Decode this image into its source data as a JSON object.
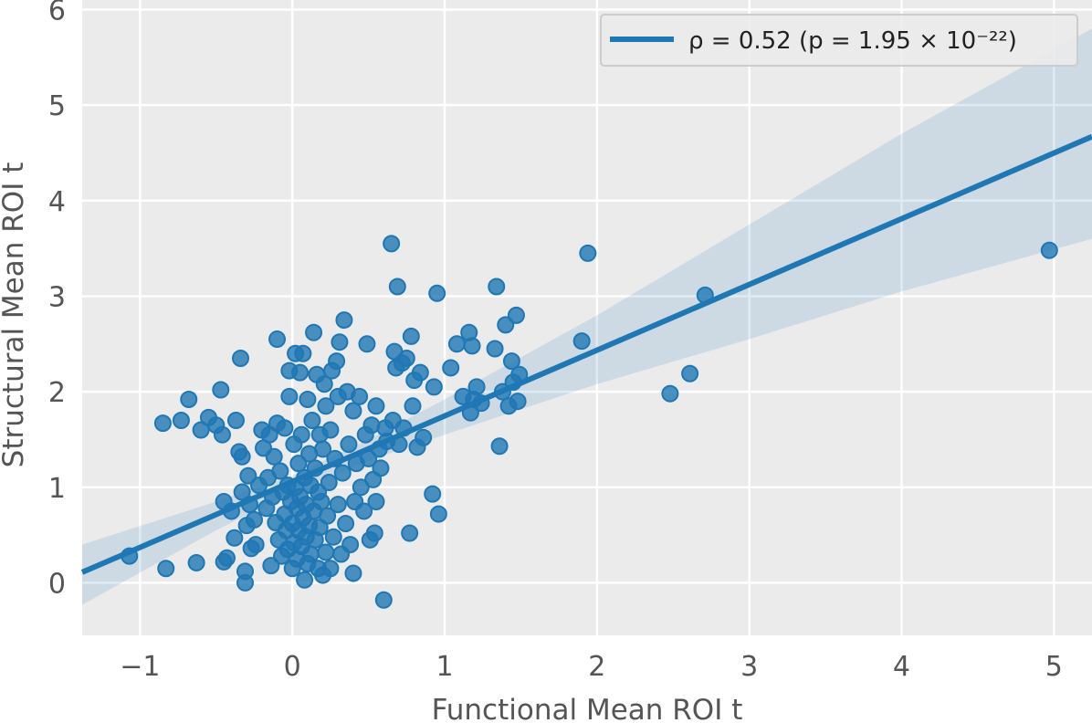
{
  "chart_data": {
    "type": "scatter",
    "xlabel": "Functional Mean ROI t",
    "ylabel": "Structural Mean ROI t",
    "xlim": [
      -1.38,
      5.25
    ],
    "ylim": [
      -0.55,
      6.1
    ],
    "x_ticks": [
      -1,
      0,
      1,
      2,
      3,
      4,
      5
    ],
    "y_ticks": [
      0,
      1,
      2,
      3,
      4,
      5,
      6
    ],
    "x_tick_labels": [
      "−1",
      "0",
      "1",
      "2",
      "3",
      "4",
      "5"
    ],
    "y_tick_labels": [
      "0",
      "1",
      "2",
      "3",
      "4",
      "5",
      "6"
    ],
    "grid": true,
    "background": "#ebebeb",
    "point_color": "#1f77b4",
    "legend": {
      "placement": "top-right",
      "label": "ρ = 0.52 (p = 1.95 × 10⁻²²)"
    },
    "regression": {
      "x_range": [
        -1.38,
        5.25
      ],
      "y_at_xmin": 0.11,
      "y_at_xmax": 4.67
    },
    "confidence_band": [
      {
        "x": -1.38,
        "lo": -0.23,
        "hi": 0.4
      },
      {
        "x": -0.5,
        "lo": 0.55,
        "hi": 0.85
      },
      {
        "x": 0.0,
        "lo": 0.95,
        "hi": 1.12
      },
      {
        "x": 0.5,
        "lo": 1.28,
        "hi": 1.5
      },
      {
        "x": 1.0,
        "lo": 1.55,
        "hi": 1.92
      },
      {
        "x": 2.0,
        "lo": 2.08,
        "hi": 2.8
      },
      {
        "x": 3.0,
        "lo": 2.55,
        "hi": 3.75
      },
      {
        "x": 4.0,
        "lo": 3.05,
        "hi": 4.7
      },
      {
        "x": 5.25,
        "lo": 3.6,
        "hi": 5.8
      }
    ],
    "points": [
      {
        "x": -1.07,
        "y": 0.28
      },
      {
        "x": -0.83,
        "y": 0.15
      },
      {
        "x": -0.85,
        "y": 1.67
      },
      {
        "x": -0.73,
        "y": 1.7
      },
      {
        "x": -0.68,
        "y": 1.92
      },
      {
        "x": -0.63,
        "y": 0.21
      },
      {
        "x": -0.6,
        "y": 1.6
      },
      {
        "x": -0.55,
        "y": 1.73
      },
      {
        "x": -0.5,
        "y": 1.65
      },
      {
        "x": -0.47,
        "y": 2.02
      },
      {
        "x": -0.46,
        "y": 1.55
      },
      {
        "x": -0.45,
        "y": 0.85
      },
      {
        "x": -0.45,
        "y": 0.22
      },
      {
        "x": -0.43,
        "y": 0.26
      },
      {
        "x": -0.4,
        "y": 0.75
      },
      {
        "x": -0.38,
        "y": 0.47
      },
      {
        "x": -0.37,
        "y": 1.7
      },
      {
        "x": -0.35,
        "y": 1.37
      },
      {
        "x": -0.34,
        "y": 2.35
      },
      {
        "x": -0.33,
        "y": 1.32
      },
      {
        "x": -0.33,
        "y": 0.95
      },
      {
        "x": -0.31,
        "y": 0.0
      },
      {
        "x": -0.31,
        "y": 0.12
      },
      {
        "x": -0.3,
        "y": 0.6
      },
      {
        "x": -0.29,
        "y": 1.12
      },
      {
        "x": -0.28,
        "y": 0.82
      },
      {
        "x": -0.27,
        "y": 0.36
      },
      {
        "x": -0.25,
        "y": 0.66
      },
      {
        "x": -0.24,
        "y": 0.4
      },
      {
        "x": -0.22,
        "y": 1.02
      },
      {
        "x": -0.2,
        "y": 1.6
      },
      {
        "x": -0.19,
        "y": 1.41
      },
      {
        "x": -0.17,
        "y": 0.78
      },
      {
        "x": -0.16,
        "y": 1.1
      },
      {
        "x": -0.15,
        "y": 1.55
      },
      {
        "x": -0.14,
        "y": 0.18
      },
      {
        "x": -0.13,
        "y": 0.9
      },
      {
        "x": -0.12,
        "y": 1.32
      },
      {
        "x": -0.11,
        "y": 0.63
      },
      {
        "x": -0.1,
        "y": 2.55
      },
      {
        "x": -0.1,
        "y": 1.67
      },
      {
        "x": -0.09,
        "y": 0.45
      },
      {
        "x": -0.08,
        "y": 1.17
      },
      {
        "x": -0.07,
        "y": 0.28
      },
      {
        "x": -0.06,
        "y": 0.95
      },
      {
        "x": -0.05,
        "y": 1.62
      },
      {
        "x": -0.05,
        "y": 0.72
      },
      {
        "x": -0.04,
        "y": 0.55
      },
      {
        "x": -0.03,
        "y": 1.02
      },
      {
        "x": -0.03,
        "y": 0.35
      },
      {
        "x": -0.02,
        "y": 2.22
      },
      {
        "x": -0.02,
        "y": 1.95
      },
      {
        "x": -0.01,
        "y": 0.85
      },
      {
        "x": 0.0,
        "y": 0.15
      },
      {
        "x": 0.0,
        "y": 0.62
      },
      {
        "x": 0.01,
        "y": 1.45
      },
      {
        "x": 0.01,
        "y": 0.42
      },
      {
        "x": 0.02,
        "y": 2.4
      },
      {
        "x": 0.02,
        "y": 1.0
      },
      {
        "x": 0.03,
        "y": 0.78
      },
      {
        "x": 0.03,
        "y": 0.25
      },
      {
        "x": 0.04,
        "y": 1.25
      },
      {
        "x": 0.04,
        "y": 0.55
      },
      {
        "x": 0.05,
        "y": 2.2
      },
      {
        "x": 0.05,
        "y": 0.9
      },
      {
        "x": 0.06,
        "y": 0.38
      },
      {
        "x": 0.06,
        "y": 1.55
      },
      {
        "x": 0.07,
        "y": 0.68
      },
      {
        "x": 0.07,
        "y": 2.4
      },
      {
        "x": 0.08,
        "y": 1.1
      },
      {
        "x": 0.08,
        "y": 0.03
      },
      {
        "x": 0.09,
        "y": 0.48
      },
      {
        "x": 0.09,
        "y": 0.82
      },
      {
        "x": 0.1,
        "y": 1.92
      },
      {
        "x": 0.1,
        "y": 0.2
      },
      {
        "x": 0.11,
        "y": 1.35
      },
      {
        "x": 0.11,
        "y": 0.6
      },
      {
        "x": 0.12,
        "y": 1.02
      },
      {
        "x": 0.12,
        "y": 0.3
      },
      {
        "x": 0.13,
        "y": 1.7
      },
      {
        "x": 0.14,
        "y": 2.62
      },
      {
        "x": 0.14,
        "y": 0.75
      },
      {
        "x": 0.15,
        "y": 0.45
      },
      {
        "x": 0.15,
        "y": 1.2
      },
      {
        "x": 0.16,
        "y": 2.18
      },
      {
        "x": 0.17,
        "y": 0.95
      },
      {
        "x": 0.17,
        "y": 0.15
      },
      {
        "x": 0.18,
        "y": 1.55
      },
      {
        "x": 0.18,
        "y": 0.58
      },
      {
        "x": 0.19,
        "y": 0.85
      },
      {
        "x": 0.2,
        "y": 0.08
      },
      {
        "x": 0.2,
        "y": 1.4
      },
      {
        "x": 0.21,
        "y": 2.08
      },
      {
        "x": 0.22,
        "y": 0.32
      },
      {
        "x": 0.22,
        "y": 1.85
      },
      {
        "x": 0.23,
        "y": 0.7
      },
      {
        "x": 0.24,
        "y": 1.05
      },
      {
        "x": 0.25,
        "y": 1.6
      },
      {
        "x": 0.25,
        "y": 0.15
      },
      {
        "x": 0.26,
        "y": 2.22
      },
      {
        "x": 0.27,
        "y": 0.48
      },
      {
        "x": 0.28,
        "y": 1.3
      },
      {
        "x": 0.29,
        "y": 2.32
      },
      {
        "x": 0.3,
        "y": 0.82
      },
      {
        "x": 0.3,
        "y": 1.95
      },
      {
        "x": 0.31,
        "y": 2.52
      },
      {
        "x": 0.32,
        "y": 0.3
      },
      {
        "x": 0.33,
        "y": 1.15
      },
      {
        "x": 0.34,
        "y": 2.75
      },
      {
        "x": 0.35,
        "y": 0.62
      },
      {
        "x": 0.36,
        "y": 2.0
      },
      {
        "x": 0.37,
        "y": 1.45
      },
      {
        "x": 0.38,
        "y": 0.4
      },
      {
        "x": 0.4,
        "y": 1.8
      },
      {
        "x": 0.41,
        "y": 0.85
      },
      {
        "x": 0.42,
        "y": 1.25
      },
      {
        "x": 0.4,
        "y": 0.1
      },
      {
        "x": 0.44,
        "y": 1.95
      },
      {
        "x": 0.45,
        "y": 1.0
      },
      {
        "x": 0.47,
        "y": 0.75
      },
      {
        "x": 0.48,
        "y": 1.55
      },
      {
        "x": 0.49,
        "y": 2.5
      },
      {
        "x": 0.5,
        "y": 1.3
      },
      {
        "x": 0.51,
        "y": 0.45
      },
      {
        "x": 0.52,
        "y": 1.65
      },
      {
        "x": 0.53,
        "y": 1.08
      },
      {
        "x": 0.54,
        "y": 0.52
      },
      {
        "x": 0.55,
        "y": 1.85
      },
      {
        "x": 0.55,
        "y": 0.85
      },
      {
        "x": 0.57,
        "y": 1.4
      },
      {
        "x": 0.58,
        "y": 1.2
      },
      {
        "x": 0.6,
        "y": -0.18
      },
      {
        "x": 0.61,
        "y": 1.62
      },
      {
        "x": 0.62,
        "y": 1.48
      },
      {
        "x": 0.65,
        "y": 3.55
      },
      {
        "x": 0.66,
        "y": 1.7
      },
      {
        "x": 0.67,
        "y": 2.42
      },
      {
        "x": 0.68,
        "y": 2.25
      },
      {
        "x": 0.69,
        "y": 3.1
      },
      {
        "x": 0.7,
        "y": 1.45
      },
      {
        "x": 0.72,
        "y": 2.3
      },
      {
        "x": 0.73,
        "y": 1.62
      },
      {
        "x": 0.75,
        "y": 2.35
      },
      {
        "x": 0.77,
        "y": 0.52
      },
      {
        "x": 0.78,
        "y": 2.58
      },
      {
        "x": 0.79,
        "y": 1.85
      },
      {
        "x": 0.8,
        "y": 2.12
      },
      {
        "x": 0.82,
        "y": 1.42
      },
      {
        "x": 0.84,
        "y": 2.2
      },
      {
        "x": 0.86,
        "y": 1.52
      },
      {
        "x": 0.92,
        "y": 0.93
      },
      {
        "x": 0.93,
        "y": 2.05
      },
      {
        "x": 0.95,
        "y": 3.03
      },
      {
        "x": 0.96,
        "y": 0.72
      },
      {
        "x": 1.04,
        "y": 2.25
      },
      {
        "x": 1.08,
        "y": 2.5
      },
      {
        "x": 1.12,
        "y": 1.95
      },
      {
        "x": 1.16,
        "y": 2.62
      },
      {
        "x": 1.17,
        "y": 1.78
      },
      {
        "x": 1.18,
        "y": 2.48
      },
      {
        "x": 1.19,
        "y": 1.92
      },
      {
        "x": 1.21,
        "y": 2.05
      },
      {
        "x": 1.24,
        "y": 1.88
      },
      {
        "x": 1.33,
        "y": 2.45
      },
      {
        "x": 1.34,
        "y": 3.1
      },
      {
        "x": 1.36,
        "y": 1.43
      },
      {
        "x": 1.38,
        "y": 2.0
      },
      {
        "x": 1.4,
        "y": 2.7
      },
      {
        "x": 1.42,
        "y": 1.85
      },
      {
        "x": 1.44,
        "y": 2.32
      },
      {
        "x": 1.45,
        "y": 2.1
      },
      {
        "x": 1.47,
        "y": 2.8
      },
      {
        "x": 1.48,
        "y": 1.9
      },
      {
        "x": 1.49,
        "y": 2.18
      },
      {
        "x": 1.9,
        "y": 2.53
      },
      {
        "x": 1.94,
        "y": 3.45
      },
      {
        "x": 2.48,
        "y": 1.98
      },
      {
        "x": 2.61,
        "y": 2.19
      },
      {
        "x": 2.71,
        "y": 3.01
      },
      {
        "x": 4.97,
        "y": 3.48
      }
    ]
  }
}
